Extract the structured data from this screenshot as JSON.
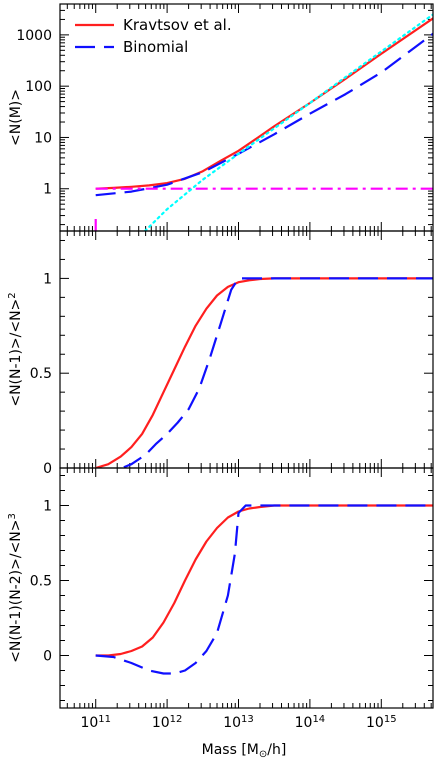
{
  "chart_data": {
    "type": "line",
    "xlabel": "Mass [M⊙/h]",
    "xscale": "log",
    "xlim": [
      31600000000.0,
      5300000000000000.0
    ],
    "x_ticks": [
      {
        "value": 100000000000.0,
        "label_base": "10",
        "label_exp": "11"
      },
      {
        "value": 1000000000000.0,
        "label_base": "10",
        "label_exp": "12"
      },
      {
        "value": 10000000000000.0,
        "label_base": "10",
        "label_exp": "13"
      },
      {
        "value": 100000000000000.0,
        "label_base": "10",
        "label_exp": "14"
      },
      {
        "value": 1000000000000000.0,
        "label_base": "10",
        "label_exp": "15"
      }
    ],
    "legend": {
      "placement": "top-left",
      "entries": [
        {
          "label": "Kravtsov et al.",
          "color": "#ff1f1f",
          "style": "solid"
        },
        {
          "label": "Binomial",
          "color": "#1010ff",
          "style": "dashed"
        }
      ]
    },
    "panels": [
      {
        "ylabel": "<N(M)>",
        "yscale": "log",
        "ylim": [
          0.15,
          4000
        ],
        "y_ticks": [
          {
            "value": 1,
            "label": "1"
          },
          {
            "value": 10,
            "label": "10"
          },
          {
            "value": 100,
            "label": "100"
          },
          {
            "value": 1000,
            "label": "1000"
          }
        ],
        "series": [
          {
            "color": "#ff1f1f",
            "style": "solid",
            "x": [
              100000000000.0,
              178000000000.0,
              316000000000.0,
              562000000000.0,
              1000000000000.0,
              1780000000000.0,
              3160000000000.0,
              5620000000000.0,
              10000000000000.0,
              17800000000000.0,
              31600000000000.0,
              100000000000000.0,
              316000000000000.0,
              1000000000000000.0,
              5300000000000000.0
            ],
            "y": [
              1.0,
              1.04,
              1.09,
              1.16,
              1.29,
              1.56,
              2.2,
              3.5,
              5.5,
              9.5,
              16.5,
              47,
              140,
              430,
              2100
            ]
          },
          {
            "color": "#1010ff",
            "style": "dashed",
            "x": [
              100000000000.0,
              316000000000.0,
              1000000000000.0,
              3160000000000.0,
              10000000000000.0,
              31600000000000.0,
              100000000000000.0,
              316000000000000.0,
              1000000000000000.0,
              5300000000000000.0
            ],
            "y": [
              0.75,
              0.88,
              1.2,
              2.1,
              4.8,
              11.5,
              29,
              70,
              185,
              1050
            ]
          },
          {
            "color": "#ff00ff",
            "style": "dashdot",
            "x": [
              100000000000.0,
              5300000000000000.0
            ],
            "y": [
              1,
              1
            ]
          },
          {
            "color": "#ff00ff",
            "style": "dashdot",
            "x": [
              100000000000.0,
              100000000000.0
            ],
            "y": [
              0.15,
              0.3
            ]
          },
          {
            "color": "#00ffff",
            "style": "dotted",
            "x": [
              490000000000.0,
              1000000000000.0,
              3160000000000.0,
              10000000000000.0,
              31600000000000.0,
              100000000000000.0,
              316000000000000.0,
              1000000000000000.0,
              5300000000000000.0
            ],
            "y": [
              0.15,
              0.4,
              1.5,
              4.8,
              15,
              47,
              150,
              475,
              2500
            ]
          }
        ]
      },
      {
        "ylabel": "<N(N-1)>/<N>²",
        "yscale": "linear",
        "ylim": [
          0,
          1.25
        ],
        "y_ticks": [
          {
            "value": 0,
            "label": "0"
          },
          {
            "value": 0.5,
            "label": "0.5"
          },
          {
            "value": 1,
            "label": "1"
          }
        ],
        "series": [
          {
            "color": "#ff1f1f",
            "style": "solid",
            "x": [
              100000000000.0,
              150000000000.0,
              224000000000.0,
              316000000000.0,
              447000000000.0,
              631000000000.0,
              890000000000.0,
              1260000000000.0,
              1780000000000.0,
              2510000000000.0,
              3550000000000.0,
              5000000000000.0,
              7100000000000.0,
              10000000000000.0,
              14100000000000.0,
              20000000000000.0,
              31600000000000.0,
              50000000000000.0,
              100000000000000.0,
              1000000000000000.0,
              5300000000000000.0
            ],
            "y": [
              0.0,
              0.02,
              0.06,
              0.11,
              0.18,
              0.28,
              0.4,
              0.52,
              0.64,
              0.75,
              0.84,
              0.91,
              0.955,
              0.98,
              0.99,
              0.997,
              1.0,
              1.0,
              1.0,
              1.0,
              1.0
            ]
          },
          {
            "color": "#1010ff",
            "style": "dashed",
            "x": [
              100000000000.0,
              200000000000.0,
              316000000000.0,
              500000000000.0,
              710000000000.0,
              1000000000000.0,
              1410000000000.0,
              2000000000000.0,
              2820000000000.0,
              3980000000000.0,
              5620000000000.0,
              7900000000000.0,
              10000000000000.0,
              12600000000000.0,
              20000000000000.0,
              50000000000000.0,
              100000000000000.0,
              1000000000000000.0,
              5300000000000000.0
            ],
            "y": [
              -0.03,
              -0.01,
              0.02,
              0.07,
              0.13,
              0.18,
              0.24,
              0.31,
              0.42,
              0.58,
              0.76,
              0.94,
              1.0,
              1.0,
              1.0,
              1.0,
              1.0,
              1.0,
              1.0
            ]
          }
        ]
      },
      {
        "ylabel": "<N(N-1)(N-2)>/<N>³",
        "yscale": "linear",
        "ylim": [
          -0.35,
          1.25
        ],
        "y_ticks": [
          {
            "value": 0,
            "label": "0"
          },
          {
            "value": 0.5,
            "label": "0.5"
          },
          {
            "value": 1,
            "label": "1"
          }
        ],
        "series": [
          {
            "color": "#ff1f1f",
            "style": "solid",
            "x": [
              100000000000.0,
              150000000000.0,
              224000000000.0,
              316000000000.0,
              447000000000.0,
              631000000000.0,
              890000000000.0,
              1260000000000.0,
              1780000000000.0,
              2510000000000.0,
              3550000000000.0,
              5000000000000.0,
              7100000000000.0,
              10000000000000.0,
              14100000000000.0,
              20000000000000.0,
              31600000000000.0,
              50000000000000.0,
              100000000000000.0,
              1000000000000000.0,
              5300000000000000.0
            ],
            "y": [
              0.0,
              0.0,
              0.01,
              0.03,
              0.06,
              0.12,
              0.22,
              0.35,
              0.5,
              0.64,
              0.76,
              0.85,
              0.92,
              0.96,
              0.98,
              0.99,
              1.0,
              1.0,
              1.0,
              1.0,
              1.0
            ]
          },
          {
            "color": "#1010ff",
            "style": "dashed",
            "x": [
              100000000000.0,
              178000000000.0,
              316000000000.0,
              562000000000.0,
              890000000000.0,
              1260000000000.0,
              1780000000000.0,
              2510000000000.0,
              3550000000000.0,
              5000000000000.0,
              7100000000000.0,
              8900000000000.0,
              10000000000000.0,
              12600000000000.0,
              20000000000000.0,
              100000000000000.0,
              1000000000000000.0,
              5300000000000000.0
            ],
            "y": [
              0.0,
              -0.01,
              -0.05,
              -0.1,
              -0.12,
              -0.12,
              -0.1,
              -0.05,
              0.03,
              0.15,
              0.4,
              0.68,
              0.95,
              1.0,
              1.0,
              1.0,
              1.0,
              1.0
            ]
          }
        ]
      }
    ]
  }
}
